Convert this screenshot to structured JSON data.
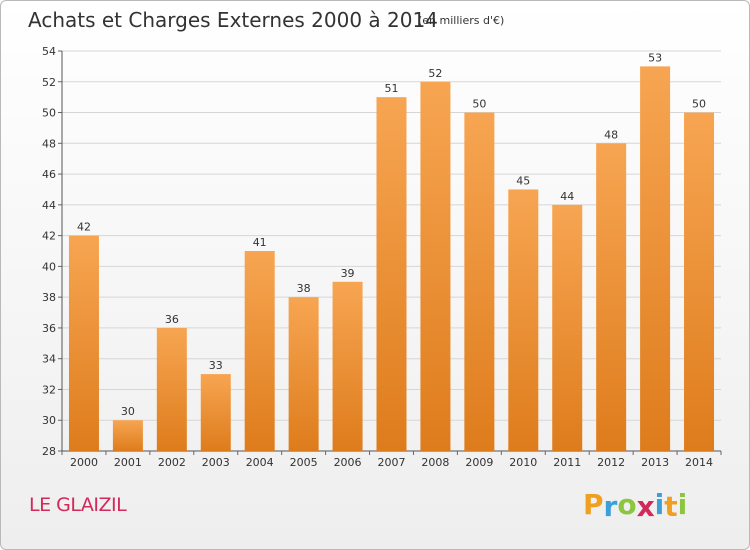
{
  "chart_data": {
    "type": "bar",
    "title": "Achats et Charges Externes 2000 à 2014",
    "subtitle": "(en milliers d'€)",
    "categories": [
      "2000",
      "2001",
      "2002",
      "2003",
      "2004",
      "2005",
      "2006",
      "2007",
      "2008",
      "2009",
      "2010",
      "2011",
      "2012",
      "2013",
      "2014"
    ],
    "values": [
      42,
      30,
      36,
      33,
      41,
      38,
      39,
      51,
      52,
      50,
      45,
      44,
      48,
      53,
      50
    ],
    "ylim": [
      28,
      54
    ],
    "yticks": [
      28,
      30,
      32,
      34,
      36,
      38,
      40,
      42,
      44,
      46,
      48,
      50,
      52,
      54
    ],
    "xlabel": "",
    "ylabel": "",
    "grid": true,
    "bar_color": "#f0943c",
    "bar_color_light": "#f7a85a",
    "bar_color_dark": "#d9781e"
  },
  "place": "LE GLAIZIL",
  "brand": {
    "letters": [
      "P",
      "r",
      "o",
      "x",
      "i",
      "t",
      "i"
    ],
    "colors": [
      "#f0a020",
      "#3aa0d8",
      "#8cc63f",
      "#d2285a",
      "#3aa0d8",
      "#f0a020",
      "#8cc63f"
    ]
  }
}
